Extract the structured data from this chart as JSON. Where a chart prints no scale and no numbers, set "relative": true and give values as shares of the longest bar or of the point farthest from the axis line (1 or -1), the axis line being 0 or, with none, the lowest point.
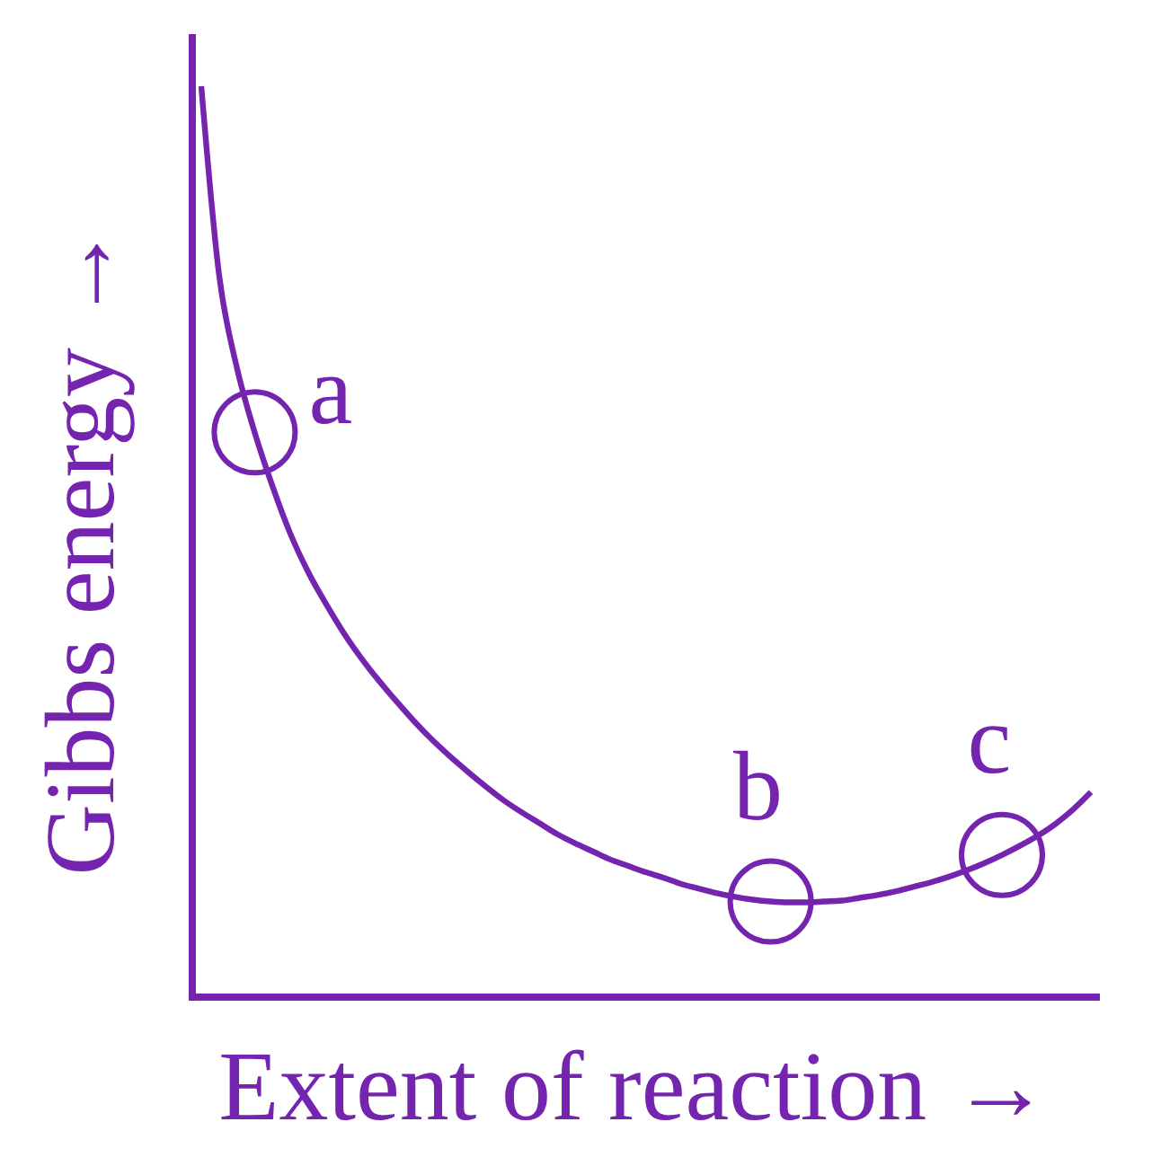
{
  "chart_data": {
    "type": "line",
    "xlabel": "Extent of reaction →",
    "ylabel": "Gibbs energy →",
    "relative": true,
    "annotations": [
      "a",
      "b",
      "c"
    ],
    "categories": [
      null,
      null,
      null,
      null,
      null,
      null,
      null,
      null,
      null,
      null,
      null,
      null,
      null,
      null,
      null,
      null,
      null,
      null,
      null,
      null,
      null,
      null,
      null,
      null,
      null,
      null,
      null,
      null,
      null,
      null,
      null,
      null,
      null,
      null,
      null,
      null,
      null,
      null,
      null,
      null,
      null,
      null,
      null,
      null,
      null,
      null,
      null,
      null,
      null,
      null,
      null
    ],
    "series": [
      {
        "color": "#7424ae",
        "values": [
          1,
          0.793,
          0.691,
          0.62,
          0.561,
          0.509,
          0.467,
          0.432,
          0.4,
          0.372,
          0.347,
          0.324,
          0.302,
          0.282,
          0.264,
          0.247,
          0.231,
          0.216,
          0.203,
          0.191,
          0.179,
          0.169,
          0.16,
          0.151,
          0.144,
          0.137,
          0.131,
          0.124,
          0.119,
          0.114,
          0.11,
          0.107,
          0.105,
          0.104,
          0.104,
          0.105,
          0.106,
          0.109,
          0.112,
          0.116,
          0.121,
          0.126,
          0.132,
          0.139,
          0.147,
          0.156,
          0.166,
          0.177,
          0.19,
          0.206,
          0.225
        ]
      }
    ]
  }
}
